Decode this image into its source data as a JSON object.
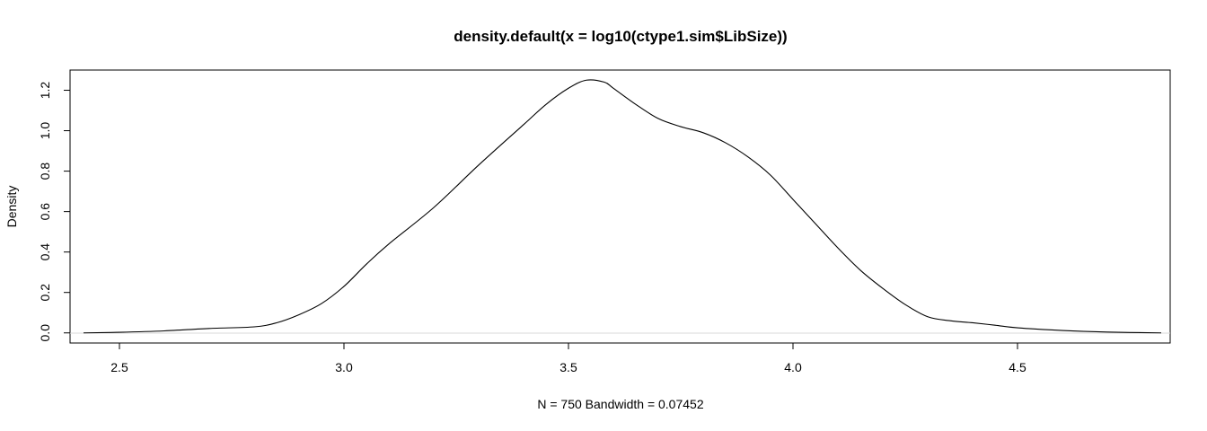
{
  "chart_data": {
    "type": "line",
    "title": "density.default(x = log10(ctype1.sim$LibSize))",
    "xlabel": "N = 750   Bandwidth = 0.07452",
    "ylabel": "Density",
    "xlim": [
      2.39,
      4.84
    ],
    "ylim": [
      -0.05,
      1.3
    ],
    "xticks": [
      "2.5",
      "3.0",
      "3.5",
      "4.0",
      "4.5"
    ],
    "yticks": [
      "0.0",
      "0.2",
      "0.4",
      "0.6",
      "0.8",
      "1.0",
      "1.2"
    ],
    "grid": false,
    "series": [
      {
        "color": "#000000",
        "x": [
          2.42,
          2.5,
          2.6,
          2.7,
          2.8,
          2.85,
          2.9,
          2.95,
          3.0,
          3.05,
          3.1,
          3.2,
          3.3,
          3.4,
          3.45,
          3.5,
          3.54,
          3.58,
          3.6,
          3.65,
          3.7,
          3.75,
          3.8,
          3.85,
          3.9,
          3.95,
          4.0,
          4.05,
          4.1,
          4.15,
          4.2,
          4.25,
          4.3,
          4.35,
          4.4,
          4.45,
          4.5,
          4.6,
          4.7,
          4.82
        ],
        "y": [
          0.0,
          0.003,
          0.01,
          0.022,
          0.03,
          0.05,
          0.09,
          0.145,
          0.23,
          0.34,
          0.44,
          0.62,
          0.83,
          1.03,
          1.13,
          1.21,
          1.25,
          1.24,
          1.21,
          1.13,
          1.06,
          1.02,
          0.99,
          0.94,
          0.87,
          0.78,
          0.66,
          0.54,
          0.42,
          0.31,
          0.22,
          0.14,
          0.08,
          0.06,
          0.05,
          0.038,
          0.025,
          0.012,
          0.004,
          0.0
        ]
      }
    ]
  }
}
